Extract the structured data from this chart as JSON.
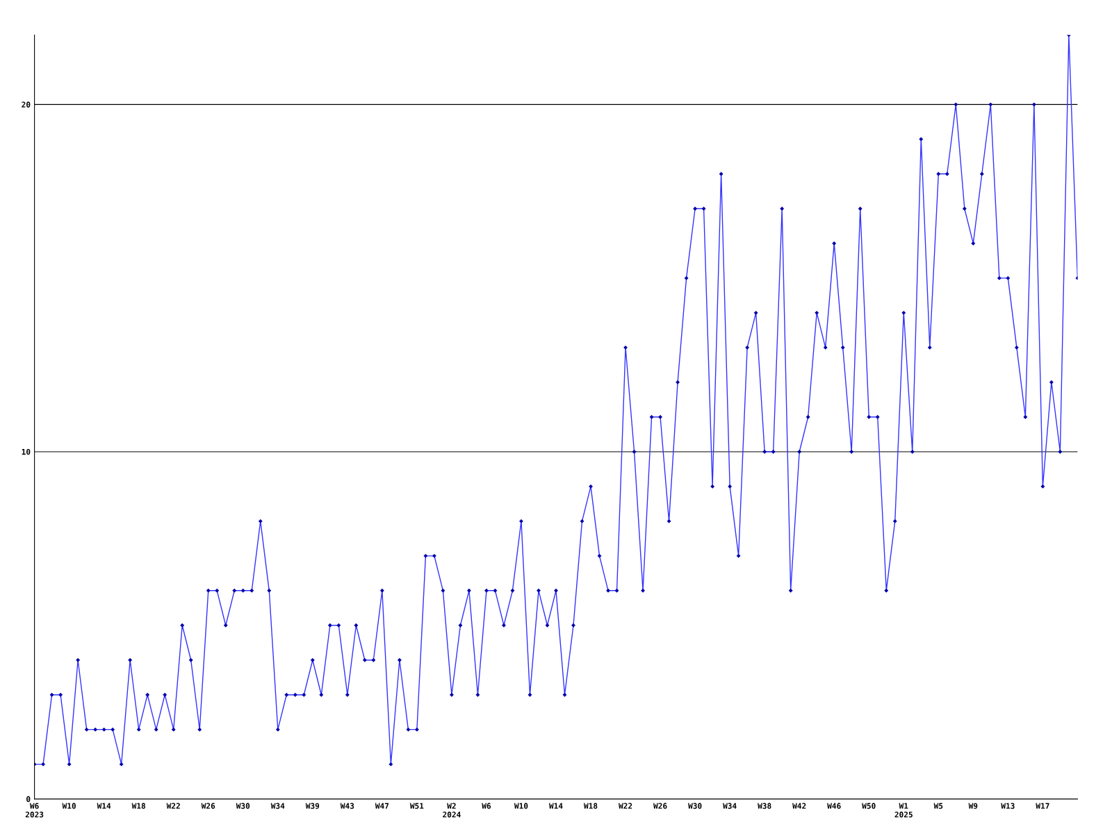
{
  "chart_data": {
    "type": "line",
    "categories": [
      "W6\n2023",
      null,
      null,
      null,
      "W10",
      null,
      null,
      null,
      "W14",
      null,
      null,
      null,
      "W18",
      null,
      null,
      null,
      "W22",
      null,
      null,
      null,
      "W26",
      null,
      null,
      null,
      "W30",
      null,
      null,
      null,
      "W34",
      null,
      null,
      null,
      "W39",
      null,
      null,
      null,
      "W43",
      null,
      null,
      null,
      "W47",
      null,
      null,
      null,
      "W51",
      null,
      null,
      null,
      "W2\n2024",
      null,
      null,
      null,
      "W6",
      null,
      null,
      null,
      "W10",
      null,
      null,
      null,
      "W14",
      null,
      null,
      null,
      "W18",
      null,
      null,
      null,
      "W22",
      null,
      null,
      null,
      "W26",
      null,
      null,
      null,
      "W30",
      null,
      null,
      null,
      "W34",
      null,
      null,
      null,
      "W38",
      null,
      null,
      null,
      "W42",
      null,
      null,
      null,
      "W46",
      null,
      null,
      null,
      "W50",
      null,
      null,
      null,
      "W1\n2025",
      null,
      null,
      null,
      "W5",
      null,
      null,
      null,
      "W9",
      null,
      null,
      null,
      "W13",
      null,
      null,
      null,
      "W17",
      null,
      null,
      null,
      null
    ],
    "series": [
      {
        "color": "#3333ff",
        "values": [
          1,
          1,
          3,
          3,
          1,
          4,
          2,
          2,
          2,
          2,
          1,
          4,
          2,
          3,
          2,
          3,
          2,
          5,
          4,
          2,
          6,
          6,
          5,
          6,
          6,
          6,
          8,
          6,
          2,
          3,
          3,
          3,
          4,
          3,
          5,
          5,
          3,
          5,
          4,
          4,
          6,
          1,
          4,
          2,
          2,
          7,
          7,
          6,
          3,
          5,
          6,
          3,
          6,
          6,
          5,
          6,
          8,
          3,
          6,
          5,
          6,
          3,
          5,
          8,
          9,
          7,
          6,
          6,
          13,
          10,
          6,
          11,
          11,
          8,
          12,
          15,
          17,
          17,
          9,
          18,
          9,
          7,
          13,
          14,
          10,
          10,
          17,
          6,
          10,
          11,
          14,
          13,
          16,
          13,
          10,
          17,
          11,
          11,
          6,
          8,
          14,
          10,
          19,
          13,
          18,
          18,
          20,
          17,
          16,
          18,
          20,
          15,
          15,
          13,
          11,
          20,
          9,
          12,
          10,
          22,
          15
        ]
      }
    ],
    "ylim": [
      0,
      22
    ],
    "yticks": [
      0,
      10,
      20
    ],
    "grid": "y",
    "marker": "diamond",
    "line_style": "solid"
  }
}
